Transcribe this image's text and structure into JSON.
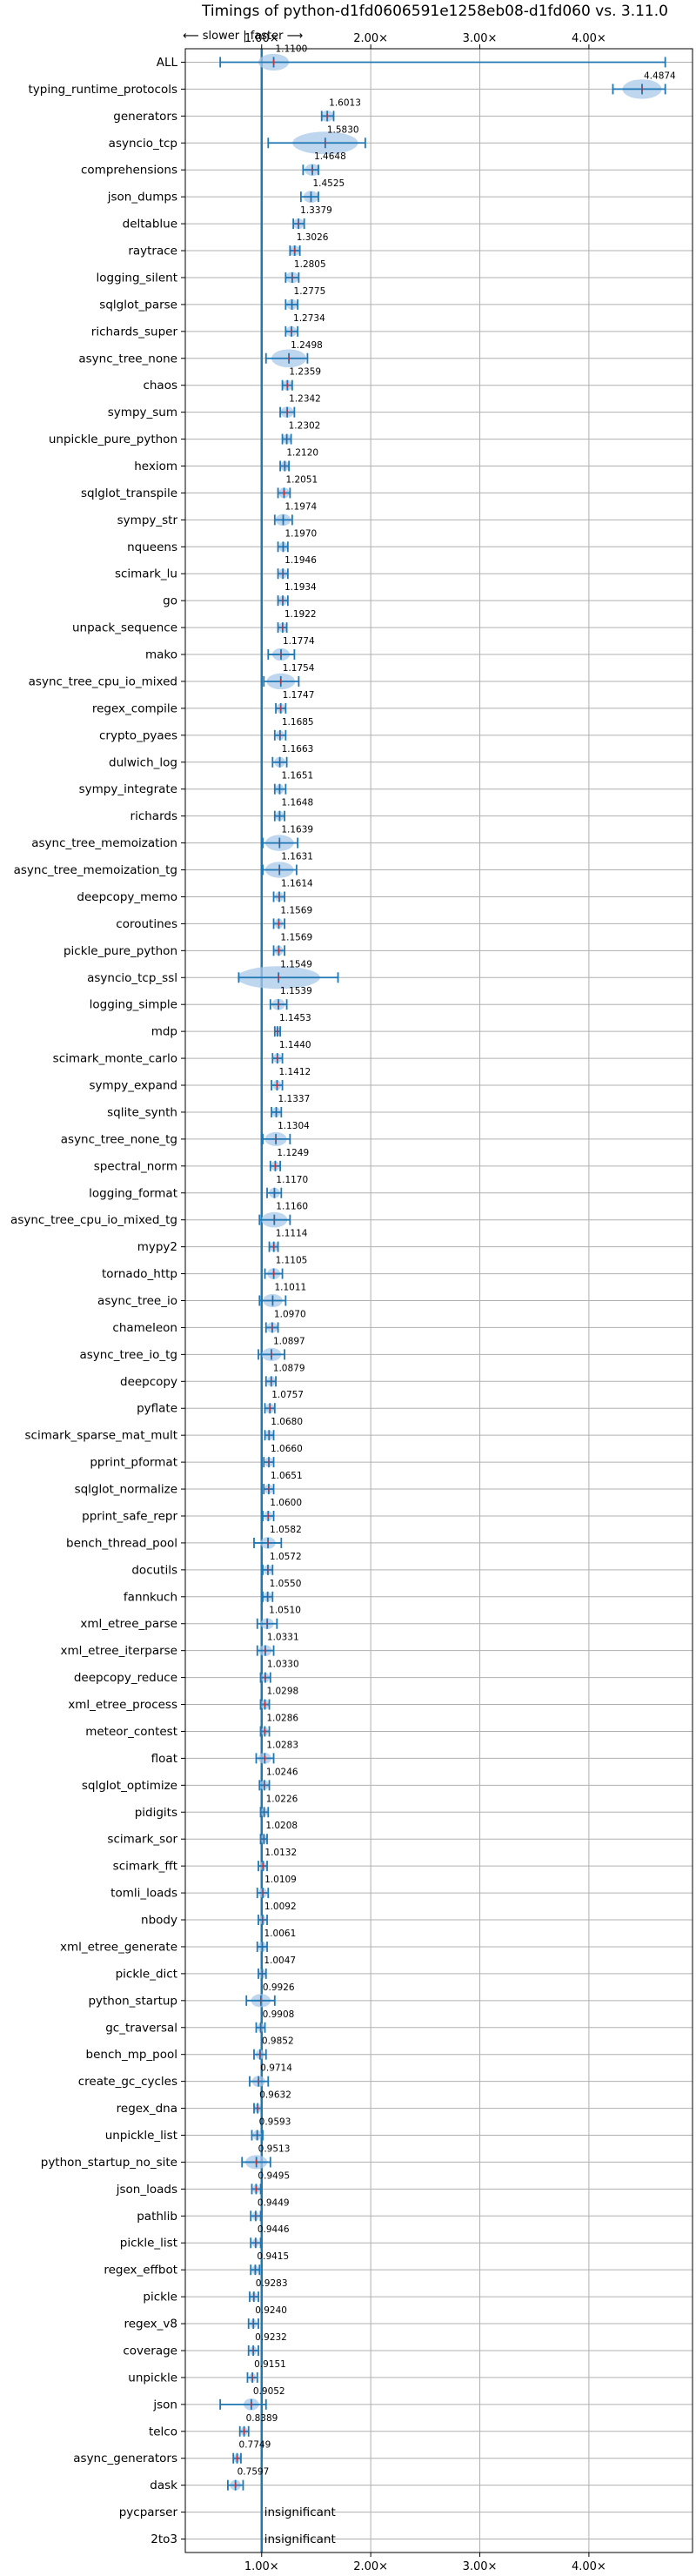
{
  "chart_data": {
    "type": "violin",
    "title": "Timings of python-d1fd0606591e1258eb08-d1fd060 vs. 3.11.0",
    "direction_label": "⟵ slower | faster ⟶",
    "xticks": [
      1.0,
      2.0,
      3.0,
      4.0
    ],
    "xtick_labels": [
      "1.00×",
      "2.00×",
      "3.00×",
      "4.00×"
    ],
    "xlim": [
      0.3,
      4.95
    ],
    "grid": true,
    "colors": {
      "violin": "#a8c8e8",
      "line": "#1f77b4",
      "median": "#d62728",
      "grid": "#b0b0b0"
    },
    "benchmarks": [
      {
        "name": "ALL",
        "value": 1.11,
        "min": 0.62,
        "max": 4.7,
        "spread": 0.14
      },
      {
        "name": "typing_runtime_protocols",
        "value": 4.4874,
        "min": 4.22,
        "max": 4.7,
        "spread": 0.18
      },
      {
        "name": "generators",
        "value": 1.6013,
        "min": 1.55,
        "max": 1.66,
        "spread": 0.06
      },
      {
        "name": "asyncio_tcp",
        "value": 1.583,
        "min": 1.06,
        "max": 1.95,
        "spread": 0.3
      },
      {
        "name": "comprehensions",
        "value": 1.4648,
        "min": 1.38,
        "max": 1.52,
        "spread": 0.07
      },
      {
        "name": "json_dumps",
        "value": 1.4525,
        "min": 1.36,
        "max": 1.52,
        "spread": 0.07
      },
      {
        "name": "deltablue",
        "value": 1.3379,
        "min": 1.29,
        "max": 1.39,
        "spread": 0.05
      },
      {
        "name": "raytrace",
        "value": 1.3026,
        "min": 1.26,
        "max": 1.35,
        "spread": 0.05
      },
      {
        "name": "logging_silent",
        "value": 1.2805,
        "min": 1.22,
        "max": 1.34,
        "spread": 0.06
      },
      {
        "name": "sqlglot_parse",
        "value": 1.2775,
        "min": 1.22,
        "max": 1.33,
        "spread": 0.05
      },
      {
        "name": "richards_super",
        "value": 1.2734,
        "min": 1.22,
        "max": 1.33,
        "spread": 0.05
      },
      {
        "name": "async_tree_none",
        "value": 1.2498,
        "min": 1.04,
        "max": 1.42,
        "spread": 0.16
      },
      {
        "name": "chaos",
        "value": 1.2359,
        "min": 1.19,
        "max": 1.28,
        "spread": 0.05
      },
      {
        "name": "sympy_sum",
        "value": 1.2342,
        "min": 1.17,
        "max": 1.3,
        "spread": 0.06
      },
      {
        "name": "unpickle_pure_python",
        "value": 1.2302,
        "min": 1.19,
        "max": 1.27,
        "spread": 0.04
      },
      {
        "name": "hexiom",
        "value": 1.212,
        "min": 1.17,
        "max": 1.25,
        "spread": 0.04
      },
      {
        "name": "sqlglot_transpile",
        "value": 1.2051,
        "min": 1.15,
        "max": 1.26,
        "spread": 0.05
      },
      {
        "name": "sympy_str",
        "value": 1.1974,
        "min": 1.12,
        "max": 1.28,
        "spread": 0.07
      },
      {
        "name": "nqueens",
        "value": 1.197,
        "min": 1.15,
        "max": 1.24,
        "spread": 0.04
      },
      {
        "name": "scimark_lu",
        "value": 1.1946,
        "min": 1.15,
        "max": 1.24,
        "spread": 0.04
      },
      {
        "name": "go",
        "value": 1.1934,
        "min": 1.15,
        "max": 1.24,
        "spread": 0.04
      },
      {
        "name": "unpack_sequence",
        "value": 1.1922,
        "min": 1.15,
        "max": 1.23,
        "spread": 0.04
      },
      {
        "name": "mako",
        "value": 1.1774,
        "min": 1.06,
        "max": 1.3,
        "spread": 0.08
      },
      {
        "name": "async_tree_cpu_io_mixed",
        "value": 1.1754,
        "min": 1.02,
        "max": 1.34,
        "spread": 0.13
      },
      {
        "name": "regex_compile",
        "value": 1.1747,
        "min": 1.13,
        "max": 1.22,
        "spread": 0.04
      },
      {
        "name": "crypto_pyaes",
        "value": 1.1685,
        "min": 1.12,
        "max": 1.22,
        "spread": 0.04
      },
      {
        "name": "dulwich_log",
        "value": 1.1663,
        "min": 1.1,
        "max": 1.23,
        "spread": 0.05
      },
      {
        "name": "sympy_integrate",
        "value": 1.1651,
        "min": 1.12,
        "max": 1.22,
        "spread": 0.04
      },
      {
        "name": "richards",
        "value": 1.1648,
        "min": 1.12,
        "max": 1.21,
        "spread": 0.04
      },
      {
        "name": "async_tree_memoization",
        "value": 1.1639,
        "min": 1.01,
        "max": 1.33,
        "spread": 0.13
      },
      {
        "name": "async_tree_memoization_tg",
        "value": 1.1631,
        "min": 1.01,
        "max": 1.32,
        "spread": 0.13
      },
      {
        "name": "deepcopy_memo",
        "value": 1.1614,
        "min": 1.11,
        "max": 1.21,
        "spread": 0.04
      },
      {
        "name": "coroutines",
        "value": 1.1569,
        "min": 1.11,
        "max": 1.21,
        "spread": 0.04
      },
      {
        "name": "pickle_pure_python",
        "value": 1.1569,
        "min": 1.11,
        "max": 1.21,
        "spread": 0.04
      },
      {
        "name": "asyncio_tcp_ssl",
        "value": 1.1549,
        "min": 0.79,
        "max": 1.7,
        "spread": 0.38
      },
      {
        "name": "logging_simple",
        "value": 1.1539,
        "min": 1.08,
        "max": 1.23,
        "spread": 0.06
      },
      {
        "name": "mdp",
        "value": 1.1453,
        "min": 1.12,
        "max": 1.17,
        "spread": 0.03
      },
      {
        "name": "scimark_monte_carlo",
        "value": 1.144,
        "min": 1.1,
        "max": 1.19,
        "spread": 0.04
      },
      {
        "name": "sympy_expand",
        "value": 1.1412,
        "min": 1.09,
        "max": 1.19,
        "spread": 0.04
      },
      {
        "name": "sqlite_synth",
        "value": 1.1337,
        "min": 1.09,
        "max": 1.18,
        "spread": 0.04
      },
      {
        "name": "async_tree_none_tg",
        "value": 1.1304,
        "min": 1.01,
        "max": 1.26,
        "spread": 0.1
      },
      {
        "name": "spectral_norm",
        "value": 1.1249,
        "min": 1.08,
        "max": 1.17,
        "spread": 0.04
      },
      {
        "name": "logging_format",
        "value": 1.117,
        "min": 1.05,
        "max": 1.18,
        "spread": 0.05
      },
      {
        "name": "async_tree_cpu_io_mixed_tg",
        "value": 1.116,
        "min": 0.98,
        "max": 1.26,
        "spread": 0.12
      },
      {
        "name": "mypy2",
        "value": 1.1114,
        "min": 1.07,
        "max": 1.15,
        "spread": 0.04
      },
      {
        "name": "tornado_http",
        "value": 1.1105,
        "min": 1.03,
        "max": 1.19,
        "spread": 0.06
      },
      {
        "name": "async_tree_io",
        "value": 1.1011,
        "min": 0.98,
        "max": 1.22,
        "spread": 0.09
      },
      {
        "name": "chameleon",
        "value": 1.097,
        "min": 1.04,
        "max": 1.15,
        "spread": 0.05
      },
      {
        "name": "async_tree_io_tg",
        "value": 1.0897,
        "min": 0.97,
        "max": 1.21,
        "spread": 0.09
      },
      {
        "name": "deepcopy",
        "value": 1.0879,
        "min": 1.04,
        "max": 1.13,
        "spread": 0.04
      },
      {
        "name": "pyflate",
        "value": 1.0757,
        "min": 1.03,
        "max": 1.12,
        "spread": 0.04
      },
      {
        "name": "scimark_sparse_mat_mult",
        "value": 1.068,
        "min": 1.03,
        "max": 1.11,
        "spread": 0.04
      },
      {
        "name": "pprint_pformat",
        "value": 1.066,
        "min": 1.02,
        "max": 1.11,
        "spread": 0.04
      },
      {
        "name": "sqlglot_normalize",
        "value": 1.0651,
        "min": 1.02,
        "max": 1.11,
        "spread": 0.04
      },
      {
        "name": "pprint_safe_repr",
        "value": 1.06,
        "min": 1.01,
        "max": 1.11,
        "spread": 0.04
      },
      {
        "name": "bench_thread_pool",
        "value": 1.0582,
        "min": 0.93,
        "max": 1.18,
        "spread": 0.07
      },
      {
        "name": "docutils",
        "value": 1.0572,
        "min": 1.01,
        "max": 1.1,
        "spread": 0.04
      },
      {
        "name": "fannkuch",
        "value": 1.055,
        "min": 1.01,
        "max": 1.1,
        "spread": 0.04
      },
      {
        "name": "xml_etree_parse",
        "value": 1.051,
        "min": 0.96,
        "max": 1.14,
        "spread": 0.06
      },
      {
        "name": "xml_etree_iterparse",
        "value": 1.0331,
        "min": 0.96,
        "max": 1.11,
        "spread": 0.06
      },
      {
        "name": "deepcopy_reduce",
        "value": 1.033,
        "min": 0.99,
        "max": 1.08,
        "spread": 0.04
      },
      {
        "name": "xml_etree_process",
        "value": 1.0298,
        "min": 0.99,
        "max": 1.07,
        "spread": 0.04
      },
      {
        "name": "meteor_contest",
        "value": 1.0286,
        "min": 0.99,
        "max": 1.07,
        "spread": 0.03
      },
      {
        "name": "float",
        "value": 1.0283,
        "min": 0.95,
        "max": 1.11,
        "spread": 0.06
      },
      {
        "name": "sqlglot_optimize",
        "value": 1.0246,
        "min": 0.98,
        "max": 1.07,
        "spread": 0.04
      },
      {
        "name": "pidigits",
        "value": 1.0226,
        "min": 0.99,
        "max": 1.06,
        "spread": 0.03
      },
      {
        "name": "scimark_sor",
        "value": 1.0208,
        "min": 0.99,
        "max": 1.05,
        "spread": 0.03
      },
      {
        "name": "scimark_fft",
        "value": 1.0132,
        "min": 0.97,
        "max": 1.05,
        "spread": 0.03
      },
      {
        "name": "tomli_loads",
        "value": 1.0109,
        "min": 0.96,
        "max": 1.06,
        "spread": 0.04
      },
      {
        "name": "nbody",
        "value": 1.0092,
        "min": 0.97,
        "max": 1.05,
        "spread": 0.03
      },
      {
        "name": "xml_etree_generate",
        "value": 1.0061,
        "min": 0.96,
        "max": 1.05,
        "spread": 0.04
      },
      {
        "name": "pickle_dict",
        "value": 1.0047,
        "min": 0.97,
        "max": 1.04,
        "spread": 0.03
      },
      {
        "name": "python_startup",
        "value": 0.9926,
        "min": 0.86,
        "max": 1.12,
        "spread": 0.09
      },
      {
        "name": "gc_traversal",
        "value": 0.9908,
        "min": 0.95,
        "max": 1.03,
        "spread": 0.03
      },
      {
        "name": "bench_mp_pool",
        "value": 0.9852,
        "min": 0.93,
        "max": 1.04,
        "spread": 0.04
      },
      {
        "name": "create_gc_cycles",
        "value": 0.9714,
        "min": 0.89,
        "max": 1.06,
        "spread": 0.06
      },
      {
        "name": "regex_dna",
        "value": 0.9632,
        "min": 0.93,
        "max": 1.0,
        "spread": 0.03
      },
      {
        "name": "unpickle_list",
        "value": 0.9593,
        "min": 0.91,
        "max": 1.01,
        "spread": 0.04
      },
      {
        "name": "python_startup_no_site",
        "value": 0.9513,
        "min": 0.82,
        "max": 1.08,
        "spread": 0.1
      },
      {
        "name": "json_loads",
        "value": 0.9495,
        "min": 0.91,
        "max": 0.99,
        "spread": 0.03
      },
      {
        "name": "pathlib",
        "value": 0.9449,
        "min": 0.9,
        "max": 0.99,
        "spread": 0.03
      },
      {
        "name": "pickle_list",
        "value": 0.9446,
        "min": 0.9,
        "max": 0.99,
        "spread": 0.03
      },
      {
        "name": "regex_effbot",
        "value": 0.9415,
        "min": 0.9,
        "max": 0.98,
        "spread": 0.03
      },
      {
        "name": "pickle",
        "value": 0.9283,
        "min": 0.89,
        "max": 0.97,
        "spread": 0.03
      },
      {
        "name": "regex_v8",
        "value": 0.924,
        "min": 0.88,
        "max": 0.97,
        "spread": 0.03
      },
      {
        "name": "coverage",
        "value": 0.9232,
        "min": 0.88,
        "max": 0.97,
        "spread": 0.03
      },
      {
        "name": "unpickle",
        "value": 0.9151,
        "min": 0.87,
        "max": 0.96,
        "spread": 0.03
      },
      {
        "name": "json",
        "value": 0.9052,
        "min": 0.62,
        "max": 1.04,
        "spread": 0.07
      },
      {
        "name": "telco",
        "value": 0.8389,
        "min": 0.8,
        "max": 0.88,
        "spread": 0.03
      },
      {
        "name": "async_generators",
        "value": 0.7749,
        "min": 0.74,
        "max": 0.81,
        "spread": 0.03
      },
      {
        "name": "dask",
        "value": 0.7597,
        "min": 0.69,
        "max": 0.83,
        "spread": 0.05
      },
      {
        "name": "pycparser",
        "value": null,
        "note": "insignificant"
      },
      {
        "name": "2to3",
        "value": null,
        "note": "insignificant"
      }
    ]
  }
}
